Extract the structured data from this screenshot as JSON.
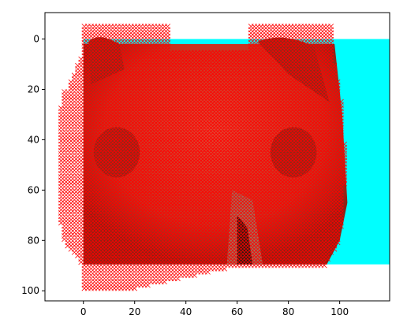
{
  "chart_data": {
    "type": "scatter",
    "title": "",
    "xlabel": "",
    "ylabel": "",
    "xlim": [
      -15,
      119.5
    ],
    "ylim": [
      104,
      -10.5
    ],
    "x_ticks": [
      0,
      20,
      40,
      60,
      80,
      100
    ],
    "y_ticks": [
      0,
      20,
      40,
      60,
      80,
      100
    ],
    "x_tick_labels": [
      "0",
      "20",
      "40",
      "60",
      "80",
      "100"
    ],
    "y_tick_labels": [
      "0",
      "20",
      "40",
      "60",
      "80",
      "100"
    ],
    "grid": false,
    "legend": "none",
    "background_image": {
      "description_colors": {
        "background": "#00ffff",
        "face_main": "#d03a2a",
        "face_dark": "#8a2a1a",
        "skin_brown": "#a0705a",
        "dark": "#2a1a10"
      },
      "extent_x": [
        0,
        119.5
      ],
      "extent_y": [
        0,
        89.5
      ]
    },
    "series": [
      {
        "marker": "x",
        "color": "#ff0000",
        "regions": [
          {
            "kind": "ear-left",
            "x": [
              0,
              33
            ],
            "y": [
              -5,
              10
            ]
          },
          {
            "kind": "ear-right",
            "x": [
              65,
              97
            ],
            "y": [
              -5,
              15
            ]
          },
          {
            "kind": "head",
            "x": [
              -10,
              103
            ],
            "y": [
              5,
              90
            ]
          },
          {
            "kind": "snout-bottom",
            "x": [
              0,
              70
            ],
            "y": [
              88,
              99
            ]
          }
        ]
      }
    ]
  }
}
